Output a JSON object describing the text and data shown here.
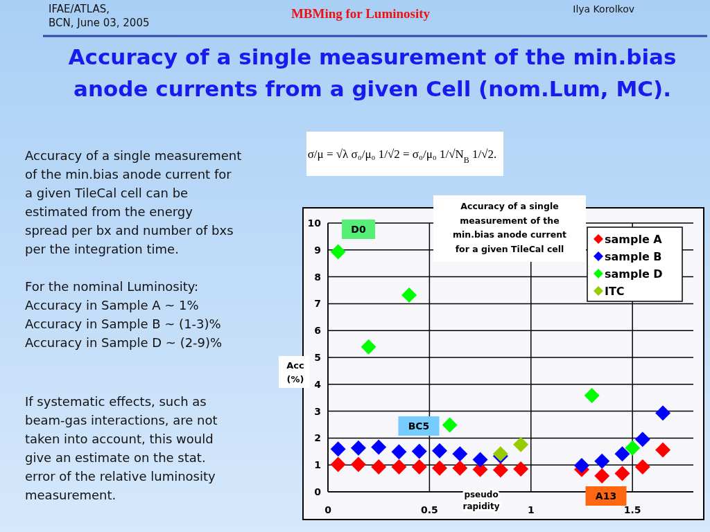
{
  "chart_data": {
    "type": "scatter",
    "title": "Accuracy of a single measurement of the min.bias anode currents from a given Cell (nom.Lum, MC).",
    "subtitle": "Accuracy of a single measurement of the min.bias anode current for a given TileCal cell",
    "xlabel": "pseudo rapidity",
    "ylabel": "Acc (%)",
    "xlim": [
      0,
      1.8
    ],
    "xticks": [
      0,
      0.5,
      1,
      1.5
    ],
    "ylim": [
      0,
      10
    ],
    "yticks": [
      0,
      1,
      2,
      3,
      4,
      5,
      6,
      7,
      8,
      9,
      10
    ],
    "grid": true,
    "legend": "top right",
    "marker": "diamond",
    "series": [
      {
        "name": "sample A",
        "color": "#ff0000",
        "x": [
          0.05,
          0.15,
          0.25,
          0.35,
          0.45,
          0.55,
          0.65,
          0.75,
          0.85,
          0.95,
          1.25,
          1.35,
          1.45,
          1.55,
          1.65
        ],
        "values": [
          1.02,
          1.02,
          0.93,
          0.93,
          0.93,
          0.88,
          0.88,
          0.83,
          0.81,
          0.85,
          0.83,
          0.59,
          0.68,
          0.93,
          1.56
        ]
      },
      {
        "name": "sample B",
        "color": "#0000ff",
        "x": [
          0.05,
          0.15,
          0.25,
          0.35,
          0.45,
          0.55,
          0.65,
          0.75,
          0.85,
          1.25,
          1.35,
          1.45,
          1.55,
          1.65
        ],
        "values": [
          1.59,
          1.63,
          1.66,
          1.49,
          1.51,
          1.53,
          1.41,
          1.2,
          1.33,
          0.98,
          1.14,
          1.41,
          1.95,
          2.93
        ]
      },
      {
        "name": "sample D",
        "color": "#00ff00",
        "x": [
          0.05,
          0.2,
          0.4,
          0.6,
          1.3,
          1.5
        ],
        "values": [
          8.93,
          5.39,
          7.32,
          2.49,
          3.58,
          1.63
        ]
      },
      {
        "name": "ITC",
        "color": "#99cc00",
        "x": [
          0.85,
          0.95
        ],
        "values": [
          1.41,
          1.76
        ]
      }
    ],
    "annotations": [
      "IFAE/ATLAS,\nBCN, June 03, 2005",
      "MBMing for Luminosity",
      "Ilya Korolkov",
      "σ/μ = √λ σ₀/μ₀ 1/√2 = σ₀/μ₀ 1/√N$_{B}$ 1/√2.",
      "Accuracy of a single measurement\nof the min.bias anode current for\na given TileCal cell can be\nestimated from the energy\nspread per bx and number of bxs\nper the integration time.",
      "For the nominal Luminosity:\nAccuracy in Sample A ~ 1%\nAccuracy in Sample B ~ (1-3)%\nAccuracy in Sample D ~ (2-9)%",
      "If systematic effects, such as\nbeam-gas interactions, are not\ntaken into account, this would\ngive an estimate on the stat.\nerror of the relative luminosity\nmeasurement.",
      "D0",
      "BC5",
      "A13"
    ]
  }
}
